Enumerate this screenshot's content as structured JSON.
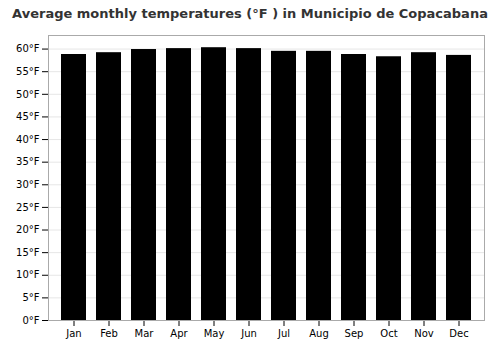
{
  "chart_data": {
    "type": "bar",
    "title": "Average monthly temperatures (°F ) in Municipio de Copacabana",
    "categories": [
      "Jan",
      "Feb",
      "Mar",
      "Apr",
      "May",
      "Jun",
      "Jul",
      "Aug",
      "Sep",
      "Oct",
      "Nov",
      "Dec"
    ],
    "values": [
      58.8,
      59.2,
      59.9,
      60.1,
      60.3,
      60.1,
      59.5,
      59.5,
      58.8,
      58.3,
      59.2,
      58.6
    ],
    "ylim": [
      0,
      63
    ],
    "yticks": [
      {
        "value": 0,
        "label": "0°F"
      },
      {
        "value": 5,
        "label": "5°F"
      },
      {
        "value": 10,
        "label": "10°F"
      },
      {
        "value": 15,
        "label": "15°F"
      },
      {
        "value": 20,
        "label": "20°F"
      },
      {
        "value": 25,
        "label": "25°F"
      },
      {
        "value": 30,
        "label": "30°F"
      },
      {
        "value": 35,
        "label": "35°F"
      },
      {
        "value": 40,
        "label": "40°F"
      },
      {
        "value": 45,
        "label": "45°F"
      },
      {
        "value": 50,
        "label": "50°F"
      },
      {
        "value": 55,
        "label": "55°F"
      },
      {
        "value": 60,
        "label": "60°F"
      }
    ],
    "grid": true
  }
}
